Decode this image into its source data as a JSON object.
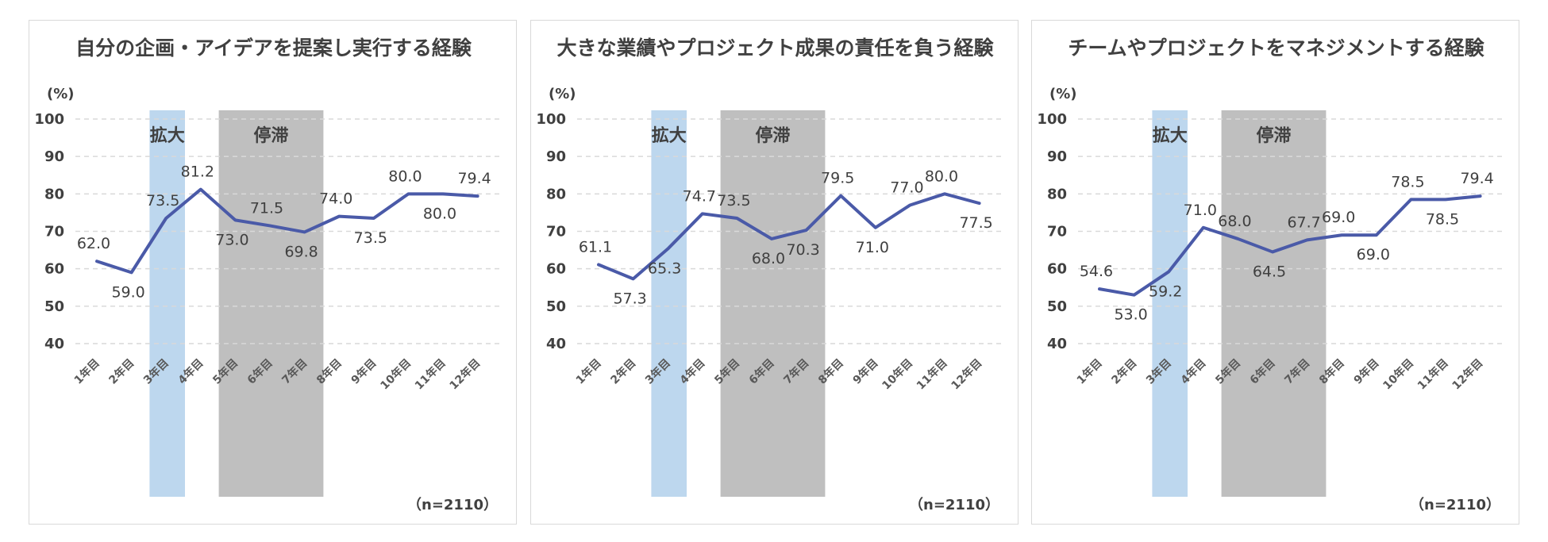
{
  "chart_data": [
    {
      "type": "line",
      "title": "自分の企画・アイデアを提案し実行する経験",
      "unit_label": "(%)",
      "categories": [
        "1年目",
        "2年目",
        "3年目",
        "4年目",
        "5年目",
        "6年目",
        "7年目",
        "8年目",
        "9年目",
        "10年目",
        "11年目",
        "12年目"
      ],
      "values": [
        62.0,
        59.0,
        73.5,
        81.2,
        73.0,
        71.5,
        69.8,
        74.0,
        73.5,
        80.0,
        80.0,
        79.4
      ],
      "value_labels": [
        "62.0",
        "59.0",
        "73.5",
        "81.2",
        "73.0",
        "71.5",
        "69.8",
        "74.0",
        "73.5",
        "80.0",
        "80.0",
        "79.4"
      ],
      "ylim": [
        40,
        100
      ],
      "yticks": [
        "40",
        "50",
        "60",
        "70",
        "80",
        "90",
        "100"
      ],
      "bands": [
        {
          "label": "拡大",
          "from": "3年目",
          "to": "3年目",
          "color": "#bdd7ee"
        },
        {
          "label": "停滞",
          "from": "5年目",
          "to": "7年目",
          "color": "#bfbfbf"
        }
      ],
      "note": "（n=2110）",
      "line_color": "#4a5aa8"
    },
    {
      "type": "line",
      "title": "大きな業績やプロジェクト成果の責任を負う経験",
      "unit_label": "(%)",
      "categories": [
        "1年目",
        "2年目",
        "3年目",
        "4年目",
        "5年目",
        "6年目",
        "7年目",
        "8年目",
        "9年目",
        "10年目",
        "11年目",
        "12年目"
      ],
      "values": [
        61.1,
        57.3,
        65.3,
        74.7,
        73.5,
        68.0,
        70.3,
        79.5,
        71.0,
        77.0,
        80.0,
        77.5
      ],
      "value_labels": [
        "61.1",
        "57.3",
        "65.3",
        "74.7",
        "73.5",
        "68.0",
        "70.3",
        "79.5",
        "71.0",
        "77.0",
        "80.0",
        "77.5"
      ],
      "ylim": [
        40,
        100
      ],
      "yticks": [
        "40",
        "50",
        "60",
        "70",
        "80",
        "90",
        "100"
      ],
      "bands": [
        {
          "label": "拡大",
          "from": "3年目",
          "to": "3年目",
          "color": "#bdd7ee"
        },
        {
          "label": "停滞",
          "from": "5年目",
          "to": "7年目",
          "color": "#bfbfbf"
        }
      ],
      "note": "（n=2110）",
      "line_color": "#4a5aa8"
    },
    {
      "type": "line",
      "title": "チームやプロジェクトをマネジメントする経験",
      "unit_label": "(%)",
      "categories": [
        "1年目",
        "2年目",
        "3年目",
        "4年目",
        "5年目",
        "6年目",
        "7年目",
        "8年目",
        "9年目",
        "10年目",
        "11年目",
        "12年目"
      ],
      "values": [
        54.6,
        53.0,
        59.2,
        71.0,
        68.0,
        64.5,
        67.7,
        69.0,
        69.0,
        78.5,
        78.5,
        79.4
      ],
      "value_labels": [
        "54.6",
        "53.0",
        "59.2",
        "71.0",
        "68.0",
        "64.5",
        "67.7",
        "69.0",
        "69.0",
        "78.5",
        "78.5",
        "79.4"
      ],
      "ylim": [
        40,
        100
      ],
      "yticks": [
        "40",
        "50",
        "60",
        "70",
        "80",
        "90",
        "100"
      ],
      "bands": [
        {
          "label": "拡大",
          "from": "3年目",
          "to": "3年目",
          "color": "#bdd7ee"
        },
        {
          "label": "停滞",
          "from": "5年目",
          "to": "7年目",
          "color": "#bfbfbf"
        }
      ],
      "note": "（n=2110）",
      "line_color": "#4a5aa8"
    }
  ]
}
